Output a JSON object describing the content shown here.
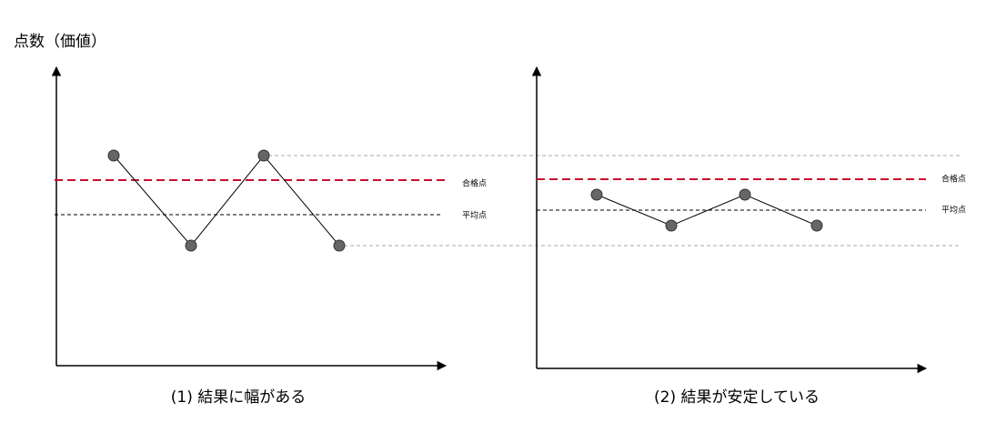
{
  "y_axis_label": "点数（価値）",
  "panels": [
    {
      "caption": "(1) 結果に幅がある",
      "pass_label": "合格点",
      "average_label": "平均点"
    },
    {
      "caption": "(2) 結果が安定している",
      "pass_label": "合格点",
      "average_label": "平均点"
    }
  ]
}
